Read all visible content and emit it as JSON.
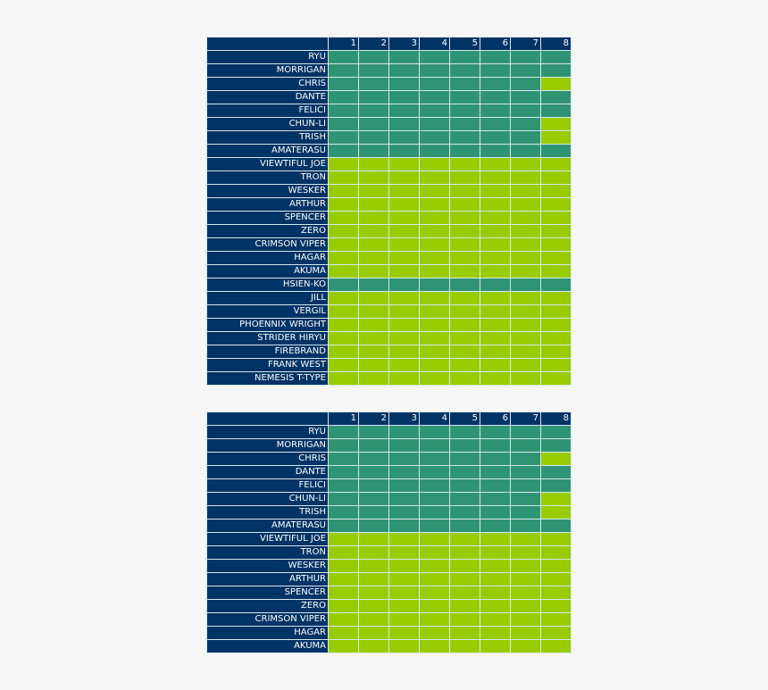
{
  "chart_data": [
    {
      "type": "heatmap",
      "columns": [
        "1",
        "2",
        "3",
        "4",
        "5",
        "6",
        "7",
        "8"
      ],
      "legend": {
        "dark": "#2f9473",
        "lime": "#99cc00"
      },
      "rows": [
        {
          "name": "RYU",
          "cells": [
            "dark",
            "dark",
            "dark",
            "dark",
            "dark",
            "dark",
            "dark",
            "dark"
          ]
        },
        {
          "name": "MORRIGAN",
          "cells": [
            "dark",
            "dark",
            "dark",
            "dark",
            "dark",
            "dark",
            "dark",
            "dark"
          ]
        },
        {
          "name": "CHRIS",
          "cells": [
            "dark",
            "dark",
            "dark",
            "dark",
            "dark",
            "dark",
            "dark",
            "lime"
          ]
        },
        {
          "name": "DANTE",
          "cells": [
            "dark",
            "dark",
            "dark",
            "dark",
            "dark",
            "dark",
            "dark",
            "dark"
          ]
        },
        {
          "name": "FELICI",
          "cells": [
            "dark",
            "dark",
            "dark",
            "dark",
            "dark",
            "dark",
            "dark",
            "dark"
          ]
        },
        {
          "name": "CHUN-LI",
          "cells": [
            "dark",
            "dark",
            "dark",
            "dark",
            "dark",
            "dark",
            "dark",
            "lime"
          ]
        },
        {
          "name": "TRISH",
          "cells": [
            "dark",
            "dark",
            "dark",
            "dark",
            "dark",
            "dark",
            "dark",
            "lime"
          ]
        },
        {
          "name": "AMATERASU",
          "cells": [
            "dark",
            "dark",
            "dark",
            "dark",
            "dark",
            "dark",
            "dark",
            "dark"
          ]
        },
        {
          "name": "VIEWTIFUL JOE",
          "cells": [
            "lime",
            "lime",
            "lime",
            "lime",
            "lime",
            "lime",
            "lime",
            "lime"
          ]
        },
        {
          "name": "TRON",
          "cells": [
            "lime",
            "lime",
            "lime",
            "lime",
            "lime",
            "lime",
            "lime",
            "lime"
          ]
        },
        {
          "name": "WESKER",
          "cells": [
            "lime",
            "lime",
            "lime",
            "lime",
            "lime",
            "lime",
            "lime",
            "lime"
          ]
        },
        {
          "name": "ARTHUR",
          "cells": [
            "lime",
            "lime",
            "lime",
            "lime",
            "lime",
            "lime",
            "lime",
            "lime"
          ]
        },
        {
          "name": "SPENCER",
          "cells": [
            "lime",
            "lime",
            "lime",
            "lime",
            "lime",
            "lime",
            "lime",
            "lime"
          ]
        },
        {
          "name": "ZERO",
          "cells": [
            "lime",
            "lime",
            "lime",
            "lime",
            "lime",
            "lime",
            "lime",
            "lime"
          ]
        },
        {
          "name": "CRIMSON VIPER",
          "cells": [
            "lime",
            "lime",
            "lime",
            "lime",
            "lime",
            "lime",
            "lime",
            "lime"
          ]
        },
        {
          "name": "HAGAR",
          "cells": [
            "lime",
            "lime",
            "lime",
            "lime",
            "lime",
            "lime",
            "lime",
            "lime"
          ]
        },
        {
          "name": "AKUMA",
          "cells": [
            "lime",
            "lime",
            "lime",
            "lime",
            "lime",
            "lime",
            "lime",
            "lime"
          ]
        },
        {
          "name": "HSIEN-KO",
          "cells": [
            "dark",
            "dark",
            "dark",
            "dark",
            "dark",
            "dark",
            "dark",
            "dark"
          ]
        },
        {
          "name": "JILL",
          "cells": [
            "lime",
            "lime",
            "lime",
            "lime",
            "lime",
            "lime",
            "lime",
            "lime"
          ]
        },
        {
          "name": "VERGIL",
          "cells": [
            "lime",
            "lime",
            "lime",
            "lime",
            "lime",
            "lime",
            "lime",
            "lime"
          ]
        },
        {
          "name": "PHOENNIX WRIGHT",
          "cells": [
            "lime",
            "lime",
            "lime",
            "lime",
            "lime",
            "lime",
            "lime",
            "lime"
          ]
        },
        {
          "name": "STRIDER HIRYU",
          "cells": [
            "lime",
            "lime",
            "lime",
            "lime",
            "lime",
            "lime",
            "lime",
            "lime"
          ]
        },
        {
          "name": "FIREBRAND",
          "cells": [
            "lime",
            "lime",
            "lime",
            "lime",
            "lime",
            "lime",
            "lime",
            "lime"
          ]
        },
        {
          "name": "FRANK WEST",
          "cells": [
            "lime",
            "lime",
            "lime",
            "lime",
            "lime",
            "lime",
            "lime",
            "lime"
          ]
        },
        {
          "name": "NEMESIS T-TYPE",
          "cells": [
            "lime",
            "lime",
            "lime",
            "lime",
            "lime",
            "lime",
            "lime",
            "lime"
          ]
        }
      ]
    },
    {
      "type": "heatmap",
      "columns": [
        "1",
        "2",
        "3",
        "4",
        "5",
        "6",
        "7",
        "8"
      ],
      "legend": {
        "dark": "#2f9473",
        "lime": "#99cc00"
      },
      "rows": [
        {
          "name": "RYU",
          "cells": [
            "dark",
            "dark",
            "dark",
            "dark",
            "dark",
            "dark",
            "dark",
            "dark"
          ]
        },
        {
          "name": "MORRIGAN",
          "cells": [
            "dark",
            "dark",
            "dark",
            "dark",
            "dark",
            "dark",
            "dark",
            "dark"
          ]
        },
        {
          "name": "CHRIS",
          "cells": [
            "dark",
            "dark",
            "dark",
            "dark",
            "dark",
            "dark",
            "dark",
            "lime"
          ]
        },
        {
          "name": "DANTE",
          "cells": [
            "dark",
            "dark",
            "dark",
            "dark",
            "dark",
            "dark",
            "dark",
            "dark"
          ]
        },
        {
          "name": "FELICI",
          "cells": [
            "dark",
            "dark",
            "dark",
            "dark",
            "dark",
            "dark",
            "dark",
            "dark"
          ]
        },
        {
          "name": "CHUN-LI",
          "cells": [
            "dark",
            "dark",
            "dark",
            "dark",
            "dark",
            "dark",
            "dark",
            "lime"
          ]
        },
        {
          "name": "TRISH",
          "cells": [
            "dark",
            "dark",
            "dark",
            "dark",
            "dark",
            "dark",
            "dark",
            "lime"
          ]
        },
        {
          "name": "AMATERASU",
          "cells": [
            "dark",
            "dark",
            "dark",
            "dark",
            "dark",
            "dark",
            "dark",
            "dark"
          ]
        },
        {
          "name": "VIEWTIFUL JOE",
          "cells": [
            "lime",
            "lime",
            "lime",
            "lime",
            "lime",
            "lime",
            "lime",
            "lime"
          ]
        },
        {
          "name": "TRON",
          "cells": [
            "lime",
            "lime",
            "lime",
            "lime",
            "lime",
            "lime",
            "lime",
            "lime"
          ]
        },
        {
          "name": "WESKER",
          "cells": [
            "lime",
            "lime",
            "lime",
            "lime",
            "lime",
            "lime",
            "lime",
            "lime"
          ]
        },
        {
          "name": "ARTHUR",
          "cells": [
            "lime",
            "lime",
            "lime",
            "lime",
            "lime",
            "lime",
            "lime",
            "lime"
          ]
        },
        {
          "name": "SPENCER",
          "cells": [
            "lime",
            "lime",
            "lime",
            "lime",
            "lime",
            "lime",
            "lime",
            "lime"
          ]
        },
        {
          "name": "ZERO",
          "cells": [
            "lime",
            "lime",
            "lime",
            "lime",
            "lime",
            "lime",
            "lime",
            "lime"
          ]
        },
        {
          "name": "CRIMSON VIPER",
          "cells": [
            "lime",
            "lime",
            "lime",
            "lime",
            "lime",
            "lime",
            "lime",
            "lime"
          ]
        },
        {
          "name": "HAGAR",
          "cells": [
            "lime",
            "lime",
            "lime",
            "lime",
            "lime",
            "lime",
            "lime",
            "lime"
          ]
        },
        {
          "name": "AKUMA",
          "cells": [
            "lime",
            "lime",
            "lime",
            "lime",
            "lime",
            "lime",
            "lime",
            "lime"
          ]
        }
      ]
    }
  ]
}
